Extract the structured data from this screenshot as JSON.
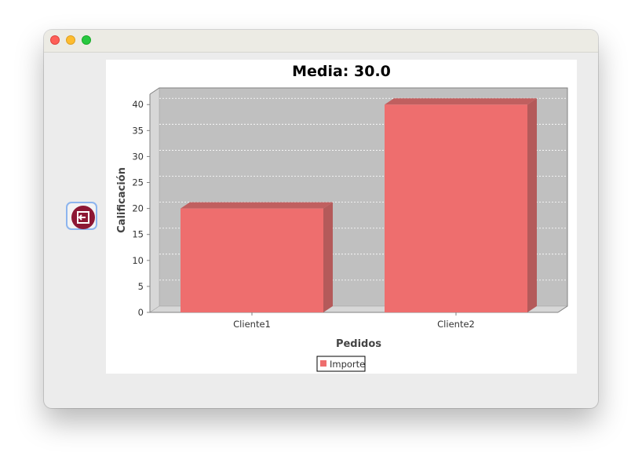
{
  "window": {
    "controls": [
      "close",
      "minimize",
      "maximize"
    ],
    "exit_button_icon": "exit-arrow-icon"
  },
  "chart_data": {
    "type": "bar",
    "title": "Media: 30.0",
    "xlabel": "Pedidos",
    "ylabel": "Calificación",
    "categories": [
      "Cliente1",
      "Cliente2"
    ],
    "series": [
      {
        "name": "Importe",
        "values": [
          20,
          40
        ],
        "color": "#ee6e6e"
      }
    ],
    "ylim": [
      0,
      42
    ],
    "yticks": [
      "0",
      "5",
      "10",
      "15",
      "20",
      "25",
      "30",
      "35",
      "40"
    ],
    "grid": true,
    "legend": "bottom",
    "style": "3d",
    "plot_background": "#c0c0c0"
  }
}
